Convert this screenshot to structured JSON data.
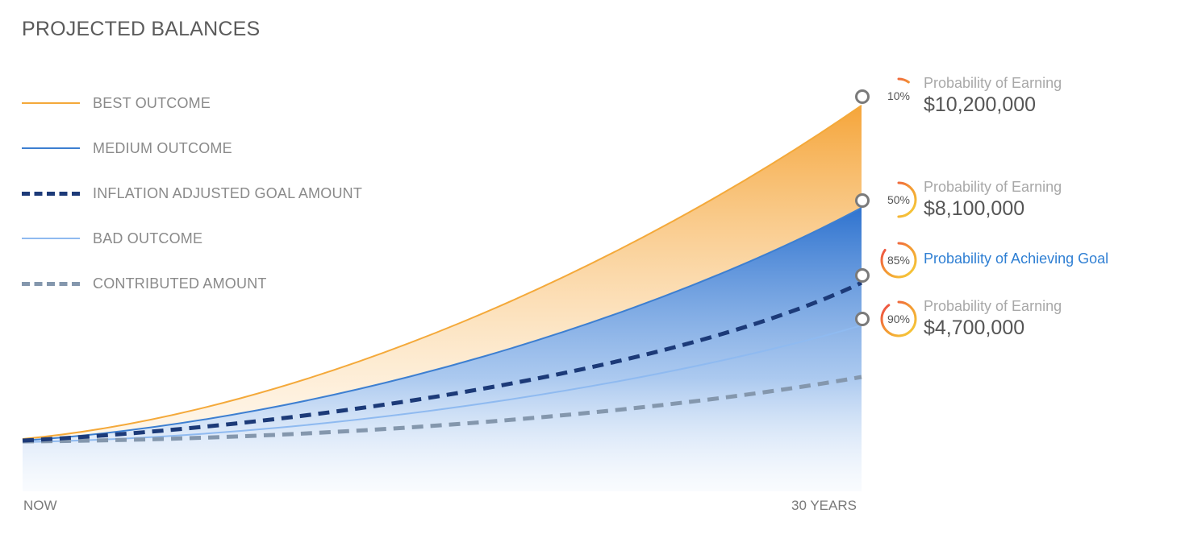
{
  "title": "PROJECTED BALANCES",
  "legend": [
    {
      "label": "BEST OUTCOME",
      "color": "#f4a93a",
      "style": "solid"
    },
    {
      "label": "MEDIUM OUTCOME",
      "color": "#3d7fd1",
      "style": "solid"
    },
    {
      "label": "INFLATION ADJUSTED GOAL AMOUNT",
      "color": "#1c3a78",
      "style": "dashed"
    },
    {
      "label": "BAD OUTCOME",
      "color": "#8fbaf0",
      "style": "solid"
    },
    {
      "label": "CONTRIBUTED AMOUNT",
      "color": "#8497ad",
      "style": "dashed"
    }
  ],
  "callouts": [
    {
      "pct": "10%",
      "pct_value": 10,
      "label": "Probability of Earning",
      "amount": "$10,200,000"
    },
    {
      "pct": "50%",
      "pct_value": 50,
      "label": "Probability of Earning",
      "amount": "$8,100,000"
    },
    {
      "pct": "85%",
      "pct_value": 85,
      "label": "Probability of Achieving Goal",
      "amount": ""
    },
    {
      "pct": "90%",
      "pct_value": 90,
      "label": "Probability of Earning",
      "amount": "$4,700,000"
    }
  ],
  "chart_data": {
    "type": "area",
    "title": "PROJECTED BALANCES",
    "x": [
      "NOW",
      "30 YEARS"
    ],
    "series": [
      {
        "name": "BEST OUTCOME",
        "end_value": 10200000
      },
      {
        "name": "MEDIUM OUTCOME",
        "end_value": 8100000
      },
      {
        "name": "INFLATION ADJUSTED GOAL AMOUNT"
      },
      {
        "name": "BAD OUTCOME",
        "end_value": 4700000
      },
      {
        "name": "CONTRIBUTED AMOUNT"
      }
    ],
    "grid": false,
    "legend_position": "top-left"
  }
}
